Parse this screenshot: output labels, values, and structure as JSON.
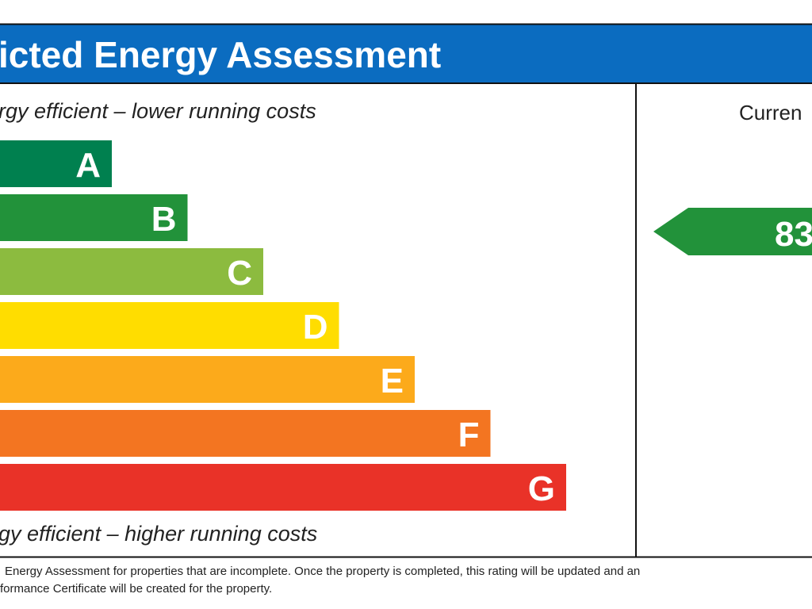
{
  "header": {
    "title": "icted Energy Assessment"
  },
  "top_caption": "rgy efficient – lower running costs",
  "bottom_caption": "gy efficient – higher running costs",
  "bands": [
    {
      "letter": "A",
      "color": "#00804f"
    },
    {
      "letter": "B",
      "color": "#22923a"
    },
    {
      "letter": "C",
      "color": "#8cbb3f"
    },
    {
      "letter": "D",
      "color": "#ffdd00"
    },
    {
      "letter": "E",
      "color": "#fcaa1b"
    },
    {
      "letter": "F",
      "color": "#f37521"
    },
    {
      "letter": "G",
      "color": "#e93228"
    }
  ],
  "current": {
    "heading": "Curren",
    "rating": "83",
    "color": "#22923a"
  },
  "footer": {
    "lines": [
      "Energy Assessment for properties that are incomplete. Once the property is completed, this rating will be updated and an",
      "formance Certificate will be created for the property."
    ]
  }
}
